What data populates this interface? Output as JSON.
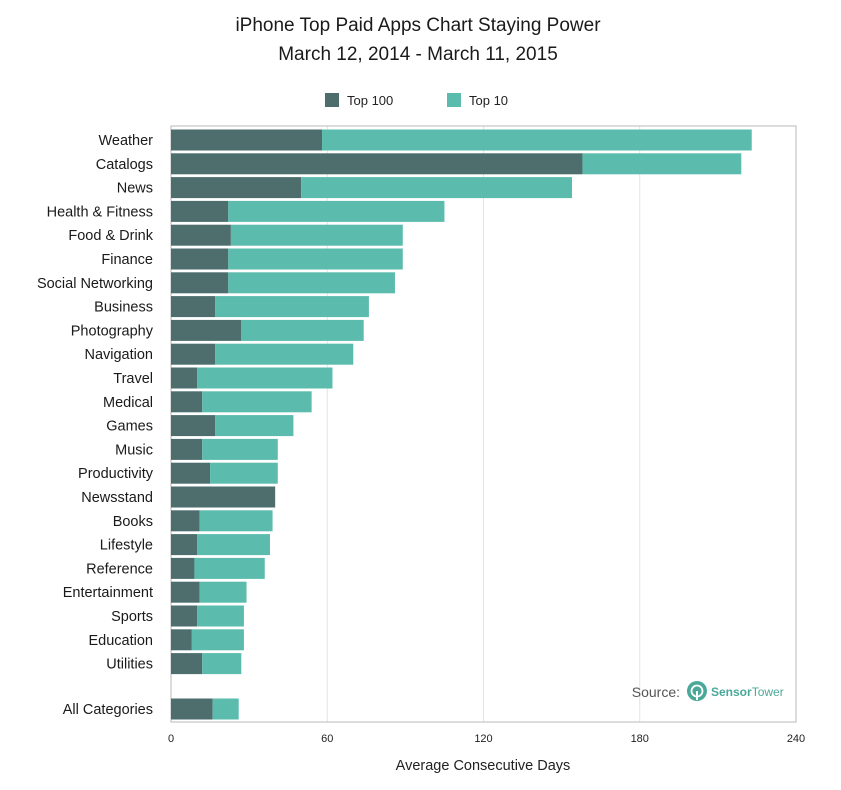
{
  "chart_data": {
    "type": "bar",
    "stacked": true,
    "orientation": "horizontal",
    "title": "iPhone Top Paid Apps Chart Staying Power",
    "subtitle": "March 12, 2014 - March 11, 2015",
    "xlabel": "Average Consecutive Days",
    "ylabel": "",
    "xlim": [
      0,
      240
    ],
    "xticks": [
      "0",
      "60",
      "120",
      "180",
      "240"
    ],
    "xtick_values": [
      0,
      60,
      120,
      180,
      240
    ],
    "grid": true,
    "legend_position": "top-center",
    "categories": [
      "Weather",
      "Catalogs",
      "News",
      "Health & Fitness",
      "Food & Drink",
      "Finance",
      "Social Networking",
      "Business",
      "Photography",
      "Navigation",
      "Travel",
      "Medical",
      "Games",
      "Music",
      "Productivity",
      "Newsstand",
      "Books",
      "Lifestyle",
      "Reference",
      "Entertainment",
      "Sports",
      "Education",
      "Utilities",
      "All Categories"
    ],
    "series": [
      {
        "name": "Top 100",
        "color": "#4e6e6e",
        "values": [
          58,
          158,
          50,
          22,
          23,
          22,
          22,
          17,
          27,
          17,
          10,
          12,
          17,
          12,
          15,
          40,
          11,
          10,
          9,
          11,
          10,
          8,
          12,
          16
        ]
      },
      {
        "name": "Top 10",
        "color": "#5bbcae",
        "values": [
          165,
          61,
          104,
          83,
          66,
          67,
          64,
          59,
          47,
          53,
          52,
          42,
          30,
          29,
          26,
          0,
          28,
          28,
          27,
          18,
          18,
          20,
          15,
          10
        ]
      }
    ]
  },
  "source": {
    "label": "Source:",
    "logo_text_primary": "Sensor",
    "logo_text_secondary": "Tower",
    "logo_color": "#4aa899"
  }
}
